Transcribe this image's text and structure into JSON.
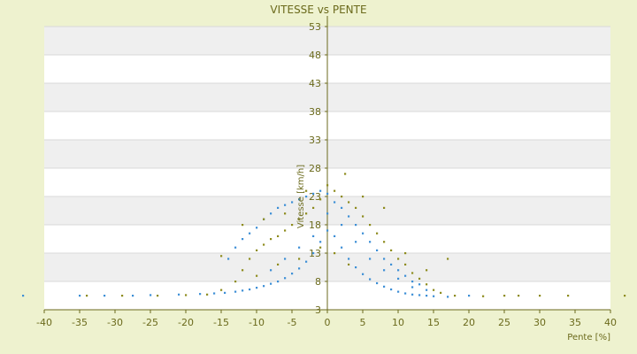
{
  "chart_data": {
    "type": "scatter",
    "title": "VITESSE vs PENTE",
    "xlabel": "Pente [%]",
    "ylabel": "Vitesse [km/h]",
    "xlim": [
      -40,
      40
    ],
    "ylim": [
      3,
      53
    ],
    "x_ticks": [
      "-40",
      "-35",
      "-30",
      "-25",
      "-20",
      "-15",
      "-10",
      "-5",
      "0",
      "5",
      "10",
      "15",
      "20",
      "25",
      "30",
      "35",
      "40"
    ],
    "y_ticks": [
      "3",
      "8",
      "13",
      "18",
      "23",
      "28",
      "33",
      "38",
      "43",
      "48",
      "53"
    ],
    "grid": true,
    "alternating_bands": true,
    "legend": "none",
    "colors": {
      "background": "#eef2cf",
      "plot_band_light": "#ffffff",
      "plot_band_dark": "#efefef",
      "series_1": "#3d8fd6",
      "series_2": "#8e8c1e",
      "axis": "#6b6a1c"
    },
    "series": [
      {
        "values": [
          [
            -43,
            5.5
          ],
          [
            -35,
            5.5
          ],
          [
            -31.5,
            5.5
          ],
          [
            -27.5,
            5.5
          ],
          [
            -25,
            5.6
          ],
          [
            -21,
            5.7
          ],
          [
            -18,
            5.8
          ],
          [
            -16,
            5.9
          ],
          [
            -14.5,
            6
          ],
          [
            -13,
            6.2
          ],
          [
            -12,
            6.4
          ],
          [
            -11,
            6.6
          ],
          [
            -10,
            6.9
          ],
          [
            -9,
            7.2
          ],
          [
            -8,
            7.6
          ],
          [
            -7,
            8
          ],
          [
            -6,
            8.6
          ],
          [
            -5,
            9.4
          ],
          [
            -4,
            10.3
          ],
          [
            -3,
            11.5
          ],
          [
            -2,
            13
          ],
          [
            -1,
            15
          ],
          [
            0,
            17
          ],
          [
            1,
            16
          ],
          [
            2,
            14
          ],
          [
            3,
            12
          ],
          [
            4,
            10.5
          ],
          [
            5,
            9.3
          ],
          [
            6,
            8.4
          ],
          [
            7,
            7.7
          ],
          [
            8,
            7.1
          ],
          [
            9,
            6.6
          ],
          [
            10,
            6.2
          ],
          [
            11,
            5.9
          ],
          [
            12,
            5.7
          ],
          [
            13,
            5.6
          ],
          [
            14,
            5.5
          ],
          [
            15,
            5.4
          ],
          [
            17,
            5.3
          ],
          [
            20,
            5.5
          ],
          [
            -14,
            12
          ],
          [
            -13,
            14
          ],
          [
            -12,
            15.5
          ],
          [
            -11,
            16.5
          ],
          [
            -10,
            17.5
          ],
          [
            -9,
            19
          ],
          [
            -8,
            20
          ],
          [
            -7,
            21
          ],
          [
            -6,
            21.5
          ],
          [
            -5,
            22
          ],
          [
            -4,
            22.5
          ],
          [
            -3,
            23
          ],
          [
            -2,
            23.5
          ],
          [
            -1,
            24
          ],
          [
            0,
            23.5
          ],
          [
            1,
            22
          ],
          [
            2,
            21
          ],
          [
            3,
            19.5
          ],
          [
            4,
            18
          ],
          [
            5,
            16.5
          ],
          [
            6,
            15
          ],
          [
            7,
            13.5
          ],
          [
            8,
            12
          ],
          [
            9,
            11
          ],
          [
            10,
            10
          ],
          [
            11,
            9
          ],
          [
            12,
            8
          ],
          [
            13,
            7.5
          ],
          [
            -8,
            10
          ],
          [
            -6,
            12
          ],
          [
            -4,
            14
          ],
          [
            -2,
            16
          ],
          [
            0,
            20
          ],
          [
            2,
            18
          ],
          [
            4,
            15
          ],
          [
            6,
            12
          ],
          [
            8,
            10
          ],
          [
            10,
            8.5
          ],
          [
            12,
            7
          ],
          [
            14,
            6.5
          ]
        ]
      },
      {
        "values": [
          [
            -34,
            5.5
          ],
          [
            -29,
            5.5
          ],
          [
            -24,
            5.5
          ],
          [
            -20,
            5.6
          ],
          [
            -17,
            5.7
          ],
          [
            -15,
            6.5
          ],
          [
            -13,
            8
          ],
          [
            -12,
            10
          ],
          [
            -11,
            12
          ],
          [
            -10,
            13.5
          ],
          [
            -9,
            14.5
          ],
          [
            -8,
            15.5
          ],
          [
            -7,
            16
          ],
          [
            -6,
            17
          ],
          [
            -5,
            18
          ],
          [
            -4,
            19
          ],
          [
            -3,
            20
          ],
          [
            -2,
            21
          ],
          [
            -1,
            22.5
          ],
          [
            0,
            25
          ],
          [
            1,
            24
          ],
          [
            2,
            23
          ],
          [
            3,
            22
          ],
          [
            4,
            21
          ],
          [
            5,
            19.5
          ],
          [
            6,
            18
          ],
          [
            7,
            16.5
          ],
          [
            8,
            15
          ],
          [
            9,
            13.5
          ],
          [
            10,
            12
          ],
          [
            11,
            11
          ],
          [
            12,
            9.5
          ],
          [
            13,
            8.5
          ],
          [
            14,
            7.5
          ],
          [
            15,
            6.5
          ],
          [
            16,
            6
          ],
          [
            17,
            12
          ],
          [
            18,
            5.5
          ],
          [
            22,
            5.4
          ],
          [
            25,
            5.5
          ],
          [
            27,
            5.5
          ],
          [
            30,
            5.5
          ],
          [
            34,
            5.5
          ],
          [
            42,
            5.5
          ],
          [
            -15,
            12.5
          ],
          [
            -12,
            18
          ],
          [
            -9,
            19
          ],
          [
            -6,
            20
          ],
          [
            -3,
            24
          ],
          [
            2.5,
            27
          ],
          [
            5,
            23
          ],
          [
            8,
            21
          ],
          [
            11,
            13
          ],
          [
            14,
            10
          ],
          [
            -10,
            9
          ],
          [
            -7,
            11
          ],
          [
            -4,
            12
          ],
          [
            -1,
            14
          ],
          [
            1,
            13
          ],
          [
            3,
            11
          ]
        ]
      }
    ]
  }
}
